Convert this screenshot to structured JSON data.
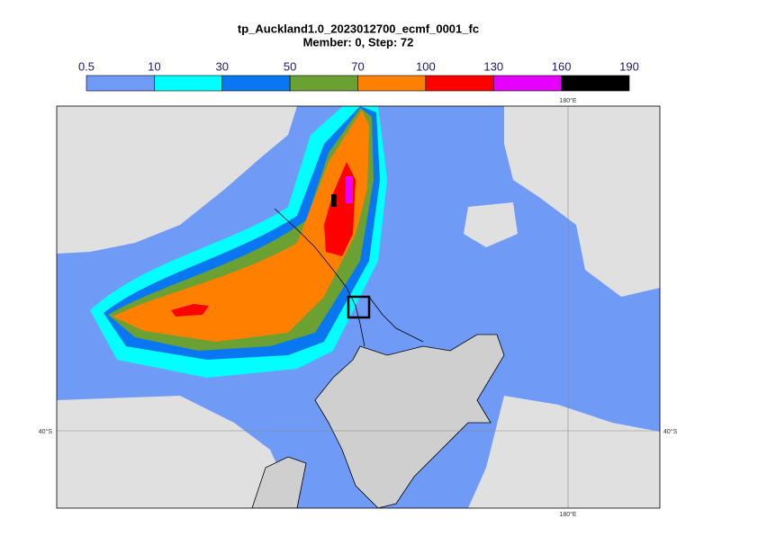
{
  "title": "tp_Auckland1.0_2023012700_ecmf_0001_fc",
  "subtitle": "Member: 0, Step: 72",
  "colorbar": {
    "ticks": [
      0.5,
      10,
      30,
      50,
      70,
      100,
      130,
      160,
      190
    ],
    "colors": [
      "#6f9bf7",
      "#00ffff",
      "#0a77f2",
      "#6aa132",
      "#ff8000",
      "#ff0000",
      "#e600ff",
      "#000000"
    ]
  },
  "graticule": {
    "lon_label": "180°E",
    "lat_label": "40°S"
  }
}
